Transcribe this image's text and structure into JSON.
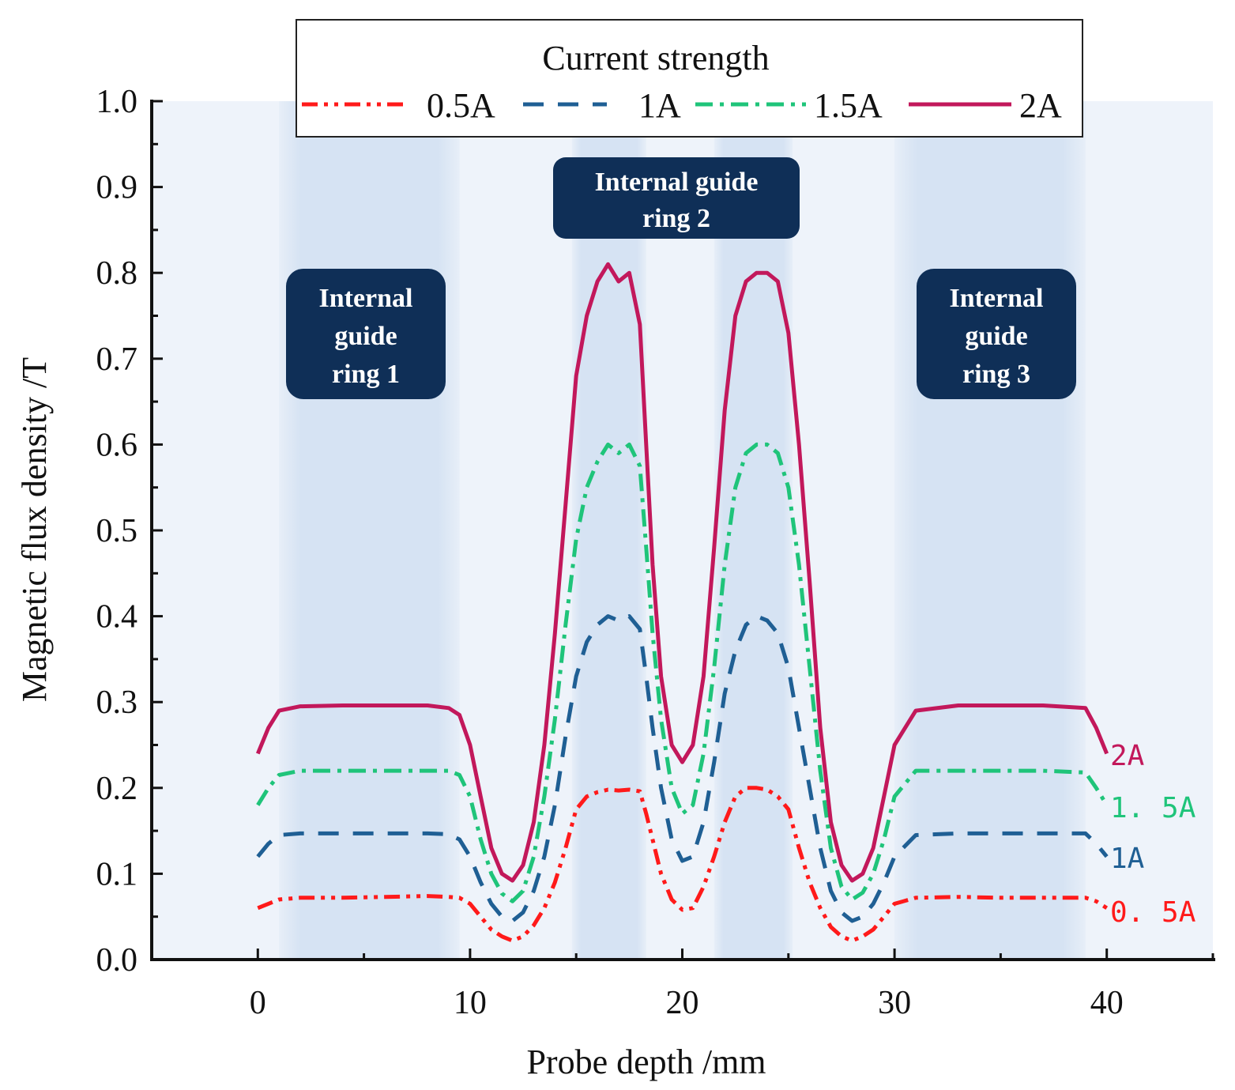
{
  "chart_data": {
    "type": "line",
    "title": "",
    "xlabel": "Probe depth /mm",
    "ylabel": "Magnetic flux density /T",
    "xlim": [
      -5,
      45
    ],
    "ylim": [
      0,
      1.0
    ],
    "xticks": [
      0,
      10,
      20,
      30,
      40
    ],
    "xtick_labels": [
      "0",
      "10",
      "20",
      "30",
      "40"
    ],
    "yticks": [
      0.0,
      0.1,
      0.2,
      0.3,
      0.4,
      0.5,
      0.6,
      0.7,
      0.8,
      0.9,
      1.0
    ],
    "ytick_labels": [
      "0.0",
      "0.1",
      "0.2",
      "0.3",
      "0.4",
      "0.5",
      "0.6",
      "0.7",
      "0.8",
      "0.9",
      "1.0"
    ],
    "legend": {
      "title": "Current strength",
      "position": "top-center",
      "entries": [
        "0.5A",
        "1A",
        "1.5A",
        "2A"
      ]
    },
    "series": [
      {
        "name": "0.5A",
        "end_label": "0. 5A",
        "color": "#ff1a1a",
        "dash": "dashdotdot",
        "x": [
          0,
          0.5,
          1,
          2,
          4,
          6,
          8,
          9,
          9.5,
          10,
          10.5,
          11,
          11.5,
          12,
          12.5,
          13,
          13.5,
          14,
          14.5,
          15,
          15.5,
          16,
          16.5,
          17,
          17.5,
          18,
          18.3,
          18.6,
          19,
          19.5,
          20,
          20.5,
          21,
          21.5,
          22,
          22.5,
          23,
          23.5,
          24,
          24.5,
          25,
          25.5,
          26,
          26.5,
          27,
          27.5,
          28,
          28.5,
          29,
          29.5,
          30,
          31,
          33,
          35,
          37,
          39,
          39.5,
          40
        ],
        "y": [
          0.06,
          0.065,
          0.07,
          0.072,
          0.072,
          0.073,
          0.074,
          0.073,
          0.072,
          0.065,
          0.05,
          0.035,
          0.027,
          0.022,
          0.027,
          0.04,
          0.06,
          0.09,
          0.13,
          0.175,
          0.19,
          0.195,
          0.198,
          0.197,
          0.198,
          0.196,
          0.17,
          0.14,
          0.1,
          0.07,
          0.058,
          0.06,
          0.085,
          0.12,
          0.16,
          0.19,
          0.2,
          0.2,
          0.198,
          0.19,
          0.175,
          0.13,
          0.09,
          0.06,
          0.038,
          0.027,
          0.022,
          0.027,
          0.035,
          0.05,
          0.065,
          0.072,
          0.073,
          0.072,
          0.072,
          0.072,
          0.068,
          0.06
        ]
      },
      {
        "name": "1A",
        "end_label": "1A",
        "color": "#1f5f94",
        "dash": "dash",
        "x": [
          0,
          0.5,
          1,
          2,
          4,
          6,
          8,
          9,
          9.5,
          10,
          10.5,
          11,
          11.5,
          12,
          12.5,
          13,
          13.5,
          14,
          14.5,
          15,
          15.5,
          16,
          16.5,
          17,
          17.5,
          18,
          18.3,
          18.6,
          19,
          19.5,
          20,
          20.5,
          21,
          21.5,
          22,
          22.5,
          23,
          23.5,
          24,
          24.5,
          25,
          25.5,
          26,
          26.5,
          27,
          27.5,
          28,
          28.5,
          29,
          29.5,
          30,
          31,
          33,
          35,
          37,
          39,
          39.5,
          40
        ],
        "y": [
          0.12,
          0.135,
          0.145,
          0.147,
          0.147,
          0.147,
          0.147,
          0.146,
          0.14,
          0.12,
          0.09,
          0.065,
          0.05,
          0.045,
          0.055,
          0.08,
          0.12,
          0.18,
          0.26,
          0.33,
          0.37,
          0.39,
          0.4,
          0.395,
          0.4,
          0.385,
          0.33,
          0.27,
          0.2,
          0.14,
          0.115,
          0.12,
          0.16,
          0.23,
          0.31,
          0.36,
          0.39,
          0.4,
          0.395,
          0.38,
          0.34,
          0.27,
          0.2,
          0.13,
          0.08,
          0.055,
          0.045,
          0.05,
          0.065,
          0.09,
          0.12,
          0.145,
          0.147,
          0.147,
          0.147,
          0.147,
          0.135,
          0.12
        ]
      },
      {
        "name": "1.5A",
        "end_label": "1. 5A",
        "color": "#1fc47a",
        "dash": "dashdot",
        "x": [
          0,
          0.5,
          1,
          2,
          4,
          6,
          8,
          9,
          9.5,
          10,
          10.5,
          11,
          11.5,
          12,
          12.5,
          13,
          13.5,
          14,
          14.5,
          15,
          15.5,
          16,
          16.5,
          17,
          17.5,
          18,
          18.3,
          18.6,
          19,
          19.5,
          20,
          20.5,
          21,
          21.5,
          22,
          22.5,
          23,
          23.5,
          24,
          24.5,
          25,
          25.5,
          26,
          26.5,
          27,
          27.5,
          28,
          28.5,
          29,
          29.5,
          30,
          31,
          33,
          35,
          37,
          39,
          39.5,
          40
        ],
        "y": [
          0.18,
          0.2,
          0.215,
          0.22,
          0.22,
          0.22,
          0.22,
          0.22,
          0.215,
          0.19,
          0.14,
          0.1,
          0.077,
          0.068,
          0.08,
          0.12,
          0.19,
          0.28,
          0.39,
          0.49,
          0.55,
          0.58,
          0.6,
          0.59,
          0.6,
          0.575,
          0.48,
          0.38,
          0.28,
          0.2,
          0.17,
          0.18,
          0.24,
          0.34,
          0.46,
          0.55,
          0.59,
          0.6,
          0.6,
          0.59,
          0.55,
          0.46,
          0.34,
          0.22,
          0.13,
          0.085,
          0.07,
          0.078,
          0.1,
          0.14,
          0.19,
          0.22,
          0.22,
          0.22,
          0.22,
          0.218,
          0.2,
          0.18
        ]
      },
      {
        "name": "2A",
        "end_label": "2A",
        "color": "#c2185b",
        "dash": "solid",
        "x": [
          0,
          0.5,
          1,
          2,
          4,
          6,
          8,
          9,
          9.5,
          10,
          10.5,
          11,
          11.5,
          12,
          12.5,
          13,
          13.5,
          14,
          14.5,
          15,
          15.5,
          16,
          16.5,
          17,
          17.5,
          18,
          18.3,
          18.6,
          19,
          19.5,
          20,
          20.5,
          21,
          21.5,
          22,
          22.5,
          23,
          23.5,
          24,
          24.5,
          25,
          25.5,
          26,
          26.5,
          27,
          27.5,
          28,
          28.5,
          29,
          29.5,
          30,
          31,
          33,
          35,
          37,
          39,
          39.5,
          40
        ],
        "y": [
          0.24,
          0.27,
          0.29,
          0.295,
          0.296,
          0.296,
          0.296,
          0.293,
          0.285,
          0.25,
          0.19,
          0.13,
          0.1,
          0.092,
          0.11,
          0.16,
          0.25,
          0.38,
          0.53,
          0.68,
          0.75,
          0.79,
          0.81,
          0.79,
          0.8,
          0.74,
          0.6,
          0.46,
          0.33,
          0.25,
          0.23,
          0.25,
          0.33,
          0.48,
          0.64,
          0.75,
          0.79,
          0.8,
          0.8,
          0.79,
          0.73,
          0.6,
          0.44,
          0.27,
          0.16,
          0.11,
          0.092,
          0.1,
          0.13,
          0.19,
          0.25,
          0.29,
          0.296,
          0.296,
          0.296,
          0.293,
          0.27,
          0.24
        ]
      }
    ],
    "shaded_regions": [
      {
        "name": "ring-1",
        "x": [
          1,
          9.5
        ]
      },
      {
        "name": "ring-2a",
        "x": [
          14.8,
          18.3
        ]
      },
      {
        "name": "ring-2b",
        "x": [
          21.5,
          25.2
        ]
      },
      {
        "name": "ring-3",
        "x": [
          30,
          39
        ]
      }
    ],
    "annotations": [
      {
        "id": "ring1",
        "lines": [
          "Internal",
          "guide",
          "ring 1"
        ]
      },
      {
        "id": "ring2",
        "lines": [
          "Internal guide",
          "ring 2"
        ]
      },
      {
        "id": "ring3",
        "lines": [
          "Internal",
          "guide",
          "ring 3"
        ]
      }
    ]
  },
  "colors": {
    "plot_background": "#eef3fa",
    "band": "#d6e3f3",
    "annotation_box": "#0f2f57"
  }
}
